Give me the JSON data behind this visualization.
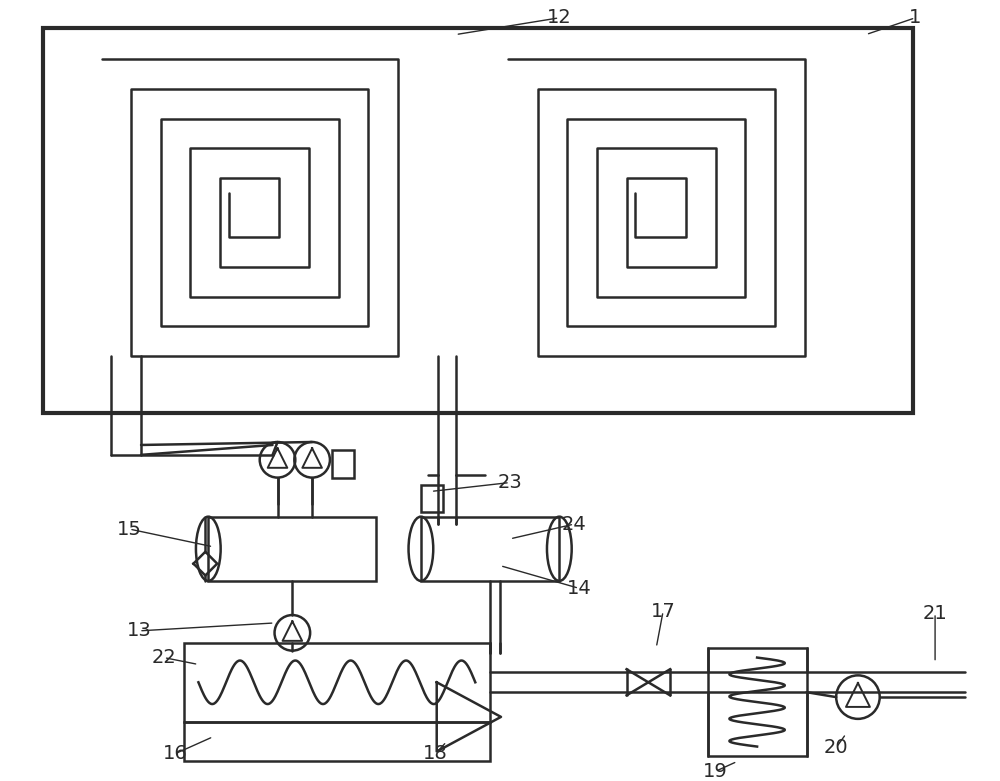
{
  "bg_color": "#ffffff",
  "line_color": "#2a2a2a",
  "fig_width": 10.0,
  "fig_height": 7.81,
  "dpi": 100
}
